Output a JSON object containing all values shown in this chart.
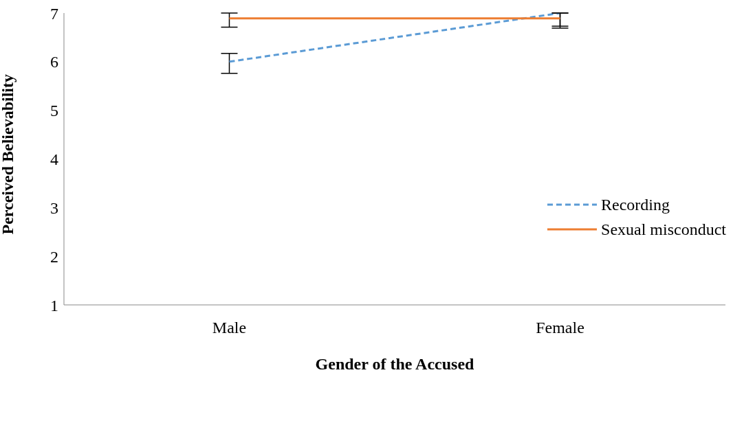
{
  "chart_data": {
    "type": "line",
    "xlabel": "Gender of the Accused",
    "ylabel": "Perceived Believability",
    "categories": [
      "Male",
      "Female"
    ],
    "series": [
      {
        "name": "Recording",
        "color": "#5b9bd5",
        "values": [
          6.0,
          7.0
        ],
        "line_style": "dashed",
        "errors": [
          [
            5.76,
            6.17
          ],
          [
            6.73,
            7
          ]
        ]
      },
      {
        "name": "Sexual misconduct",
        "color": "#ed7d31",
        "values": [
          6.89,
          6.89
        ],
        "line_style": "solid",
        "errors": [
          [
            6.71,
            7
          ],
          [
            6.69,
            7
          ]
        ]
      }
    ],
    "ylim": [
      1,
      7
    ],
    "yticks": [
      1,
      2,
      3,
      4,
      5,
      6,
      7
    ],
    "grid": false,
    "legend": "right",
    "marker": "none"
  }
}
